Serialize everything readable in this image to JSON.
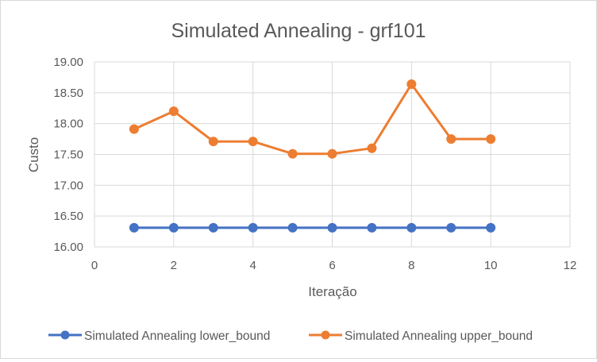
{
  "chart_data": {
    "type": "scatter",
    "title": "Simulated Annealing - grf101",
    "xlabel": "Iteração",
    "ylabel": "Custo",
    "xlim": [
      0,
      12
    ],
    "ylim": [
      16.0,
      19.0
    ],
    "x_ticks": [
      0,
      2,
      4,
      6,
      8,
      10,
      12
    ],
    "y_ticks": [
      16.0,
      16.5,
      17.0,
      17.5,
      18.0,
      18.5,
      19.0
    ],
    "y_tick_labels": [
      "16.00",
      "16.50",
      "17.00",
      "17.50",
      "18.00",
      "18.50",
      "19.00"
    ],
    "grid": true,
    "legend_position": "bottom",
    "x": [
      1,
      2,
      3,
      4,
      5,
      6,
      7,
      8,
      9,
      10
    ],
    "series": [
      {
        "name": "Simulated Annealing lower_bound",
        "color": "#4472c4",
        "values": [
          16.31,
          16.31,
          16.31,
          16.31,
          16.31,
          16.31,
          16.31,
          16.31,
          16.31,
          16.31
        ]
      },
      {
        "name": "Simulated Annealing upper_bound",
        "color": "#ed7d31",
        "values": [
          17.91,
          18.2,
          17.71,
          17.71,
          17.51,
          17.51,
          17.6,
          18.64,
          17.75,
          17.75
        ]
      }
    ]
  }
}
